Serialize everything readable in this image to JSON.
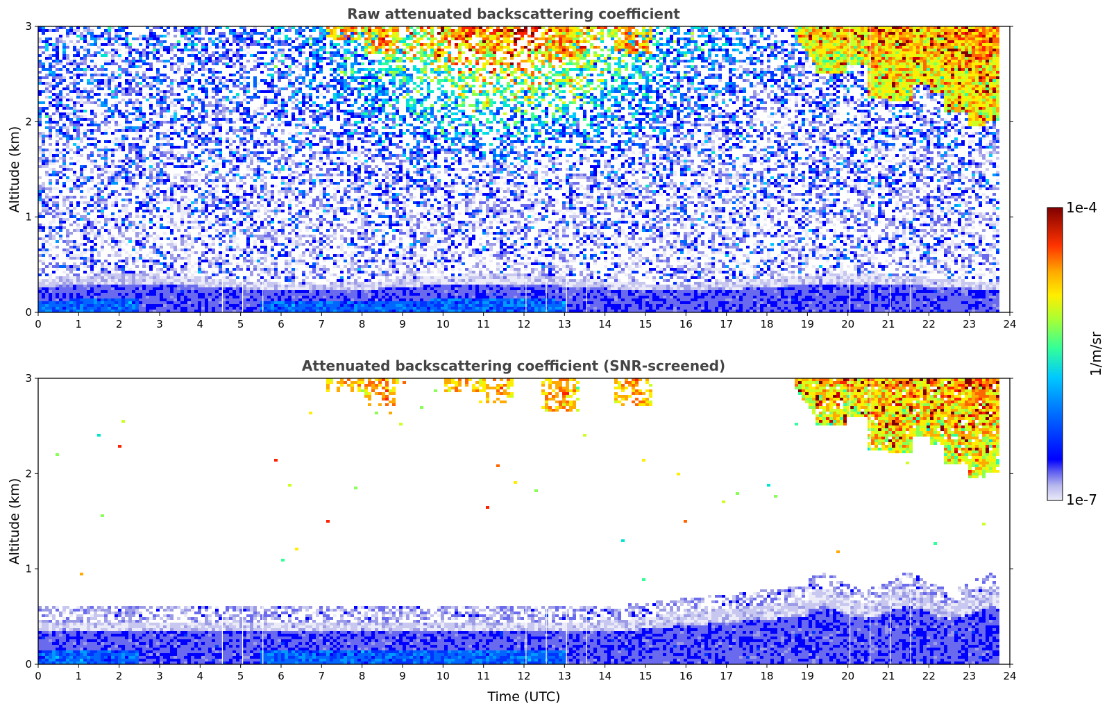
{
  "chart_data": [
    {
      "type": "heatmap",
      "title": "Raw attenuated backscattering coefficient",
      "xlabel": "",
      "ylabel": "Altitude (km)",
      "xlim": [
        0,
        24
      ],
      "ylim": [
        0,
        3
      ],
      "x_ticks": [
        "0",
        "1",
        "2",
        "3",
        "4",
        "5",
        "6",
        "7",
        "8",
        "9",
        "10",
        "11",
        "12",
        "13",
        "14",
        "15",
        "16",
        "17",
        "18",
        "19",
        "20",
        "21",
        "22",
        "23",
        "24"
      ],
      "y_ticks": [
        "0",
        "1",
        "2",
        "3"
      ],
      "features": [
        {
          "name": "boundary layer aerosol",
          "time_range": [
            0,
            23.8
          ],
          "altitude_km": [
            0,
            0.4
          ],
          "log10_value": -6.3
        },
        {
          "name": "elevated aerosol noise",
          "time_range": [
            7,
            15
          ],
          "altitude_km": [
            2.3,
            3
          ],
          "log10_value": -4.8
        },
        {
          "name": "cirrus cloud",
          "time_range": [
            18.7,
            23.8
          ],
          "altitude_km": [
            1.9,
            3
          ],
          "log10_value": -4.6
        }
      ],
      "data_gaps_hours": [
        4.55,
        5.05,
        5.55,
        12.05,
        12.55,
        13.05,
        13.55,
        20.05,
        20.55,
        21.05,
        21.55
      ]
    },
    {
      "type": "heatmap",
      "title": "Attenuated backscattering coefficient (SNR-screened)",
      "xlabel": "Time (UTC)",
      "ylabel": "Altitude (km)",
      "xlim": [
        0,
        24
      ],
      "ylim": [
        0,
        3
      ],
      "x_ticks": [
        "0",
        "1",
        "2",
        "3",
        "4",
        "5",
        "6",
        "7",
        "8",
        "9",
        "10",
        "11",
        "12",
        "13",
        "14",
        "15",
        "16",
        "17",
        "18",
        "19",
        "20",
        "21",
        "22",
        "23",
        "24"
      ],
      "y_ticks": [
        "0",
        "1",
        "2",
        "3"
      ],
      "features": [
        {
          "name": "boundary layer aerosol",
          "time_range": [
            0,
            23.8
          ],
          "altitude_km": [
            0,
            0.8
          ],
          "log10_value": -6.3
        },
        {
          "name": "elevated aerosol plumes",
          "time_range": [
            7.5,
            15
          ],
          "altitude_km": [
            2.55,
            3
          ],
          "log10_value": -4.6
        },
        {
          "name": "cirrus cloud",
          "time_range": [
            18.7,
            23.8
          ],
          "altitude_km": [
            1.9,
            3
          ],
          "log10_value": -4.6
        }
      ],
      "data_gaps_hours": [
        4.55,
        5.05,
        5.55,
        12.05,
        12.55,
        13.05,
        13.55,
        20.05,
        20.55,
        21.05,
        21.55
      ]
    }
  ],
  "colorbar": {
    "label": "1/m/sr",
    "max_label": "1e-4",
    "min_label": "1e-7",
    "log_range": [
      -7,
      -4
    ],
    "colors": [
      "#ecebf8",
      "#c7c7ef",
      "#9c9ce6",
      "#6a6aee",
      "#0000ff",
      "#0033ff",
      "#0066ff",
      "#0099ff",
      "#00ccff",
      "#00e6d0",
      "#33ff99",
      "#88ff55",
      "#ccff22",
      "#ffee00",
      "#ffaa00",
      "#ff6600",
      "#ff2200",
      "#cc0000",
      "#800000"
    ]
  }
}
